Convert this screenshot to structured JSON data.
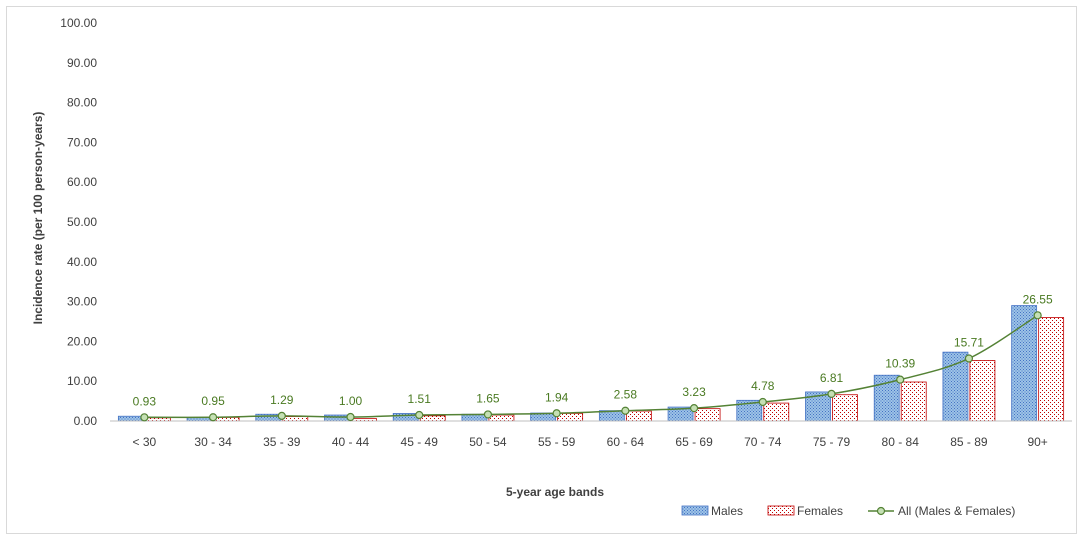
{
  "chart_data": {
    "type": "bar",
    "xlabel": "5-year age bands",
    "ylabel": "Incidence rate (per 100 person-years)",
    "ylim": [
      0,
      100
    ],
    "yticks": [
      "0.00",
      "10.00",
      "20.00",
      "30.00",
      "40.00",
      "50.00",
      "60.00",
      "70.00",
      "80.00",
      "90.00",
      "100.00"
    ],
    "grid": false,
    "legend_position": "bottom-right",
    "categories": [
      "< 30",
      "30 - 34",
      "35 - 39",
      "40 - 44",
      "45 - 49",
      "50 - 54",
      "55 - 59",
      "60 - 64",
      "65 - 69",
      "70 - 74",
      "75 - 79",
      "80 - 84",
      "85 - 89",
      "90+"
    ],
    "series": [
      {
        "name": "Males",
        "type": "bar",
        "color": "#4472c4",
        "fill_color": "#9dc3e6",
        "pattern": "dots",
        "values": [
          1.2,
          0.9,
          1.7,
          1.5,
          1.9,
          1.7,
          2.0,
          2.6,
          3.5,
          5.2,
          7.3,
          11.5,
          17.3,
          29.0
        ]
      },
      {
        "name": "Females",
        "type": "bar",
        "color": "#c00000",
        "fill_color": "#ffffff",
        "pattern": "dots",
        "values": [
          0.8,
          0.9,
          1.1,
          0.6,
          1.3,
          1.5,
          1.9,
          2.5,
          3.1,
          4.5,
          6.6,
          9.8,
          15.2,
          26.0
        ]
      },
      {
        "name": "All (Males & Females)",
        "type": "line",
        "color": "#548235",
        "marker_fill": "#c5e0b4",
        "values": [
          0.93,
          0.95,
          1.29,
          1.0,
          1.51,
          1.65,
          1.94,
          2.58,
          3.23,
          4.78,
          6.81,
          10.39,
          15.71,
          26.55
        ],
        "labels": [
          "0.93",
          "0.95",
          "1.29",
          "1.00",
          "1.51",
          "1.65",
          "1.94",
          "2.58",
          "3.23",
          "4.78",
          "6.81",
          "10.39",
          "15.71",
          "26.55"
        ]
      }
    ]
  }
}
